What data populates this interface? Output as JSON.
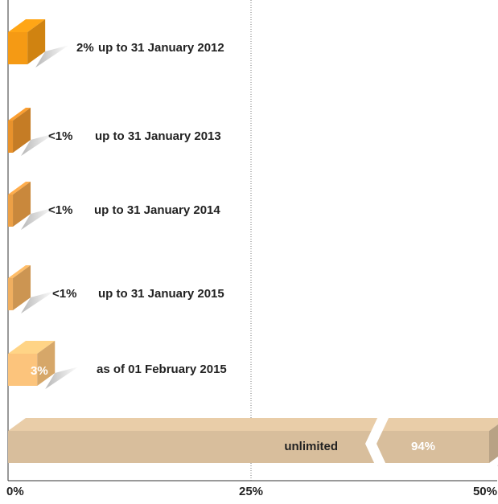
{
  "chart_data": {
    "type": "bar",
    "orientation": "horizontal",
    "categories": [
      "up to 31 January 2012",
      "up to 31 January 2013",
      "up to 31 January 2014",
      "up to 31 January 2015",
      "as of 01 February 2015",
      "unlimited"
    ],
    "values": [
      2,
      0.5,
      0.5,
      0.5,
      3,
      94
    ],
    "value_labels": [
      "2%",
      "<1%",
      "<1%",
      "<1%",
      "3%",
      "94%"
    ],
    "colors": [
      "#f59a14",
      "#e8922c",
      "#eca046",
      "#f0af60",
      "#fcc47c",
      "#d8be9c"
    ],
    "xlim": [
      0,
      50
    ],
    "xticks": [
      {
        "value": 0,
        "label": "0%"
      },
      {
        "value": 25,
        "label": "25%"
      },
      {
        "value": 50,
        "label": "50%"
      }
    ],
    "axis_break": true
  }
}
